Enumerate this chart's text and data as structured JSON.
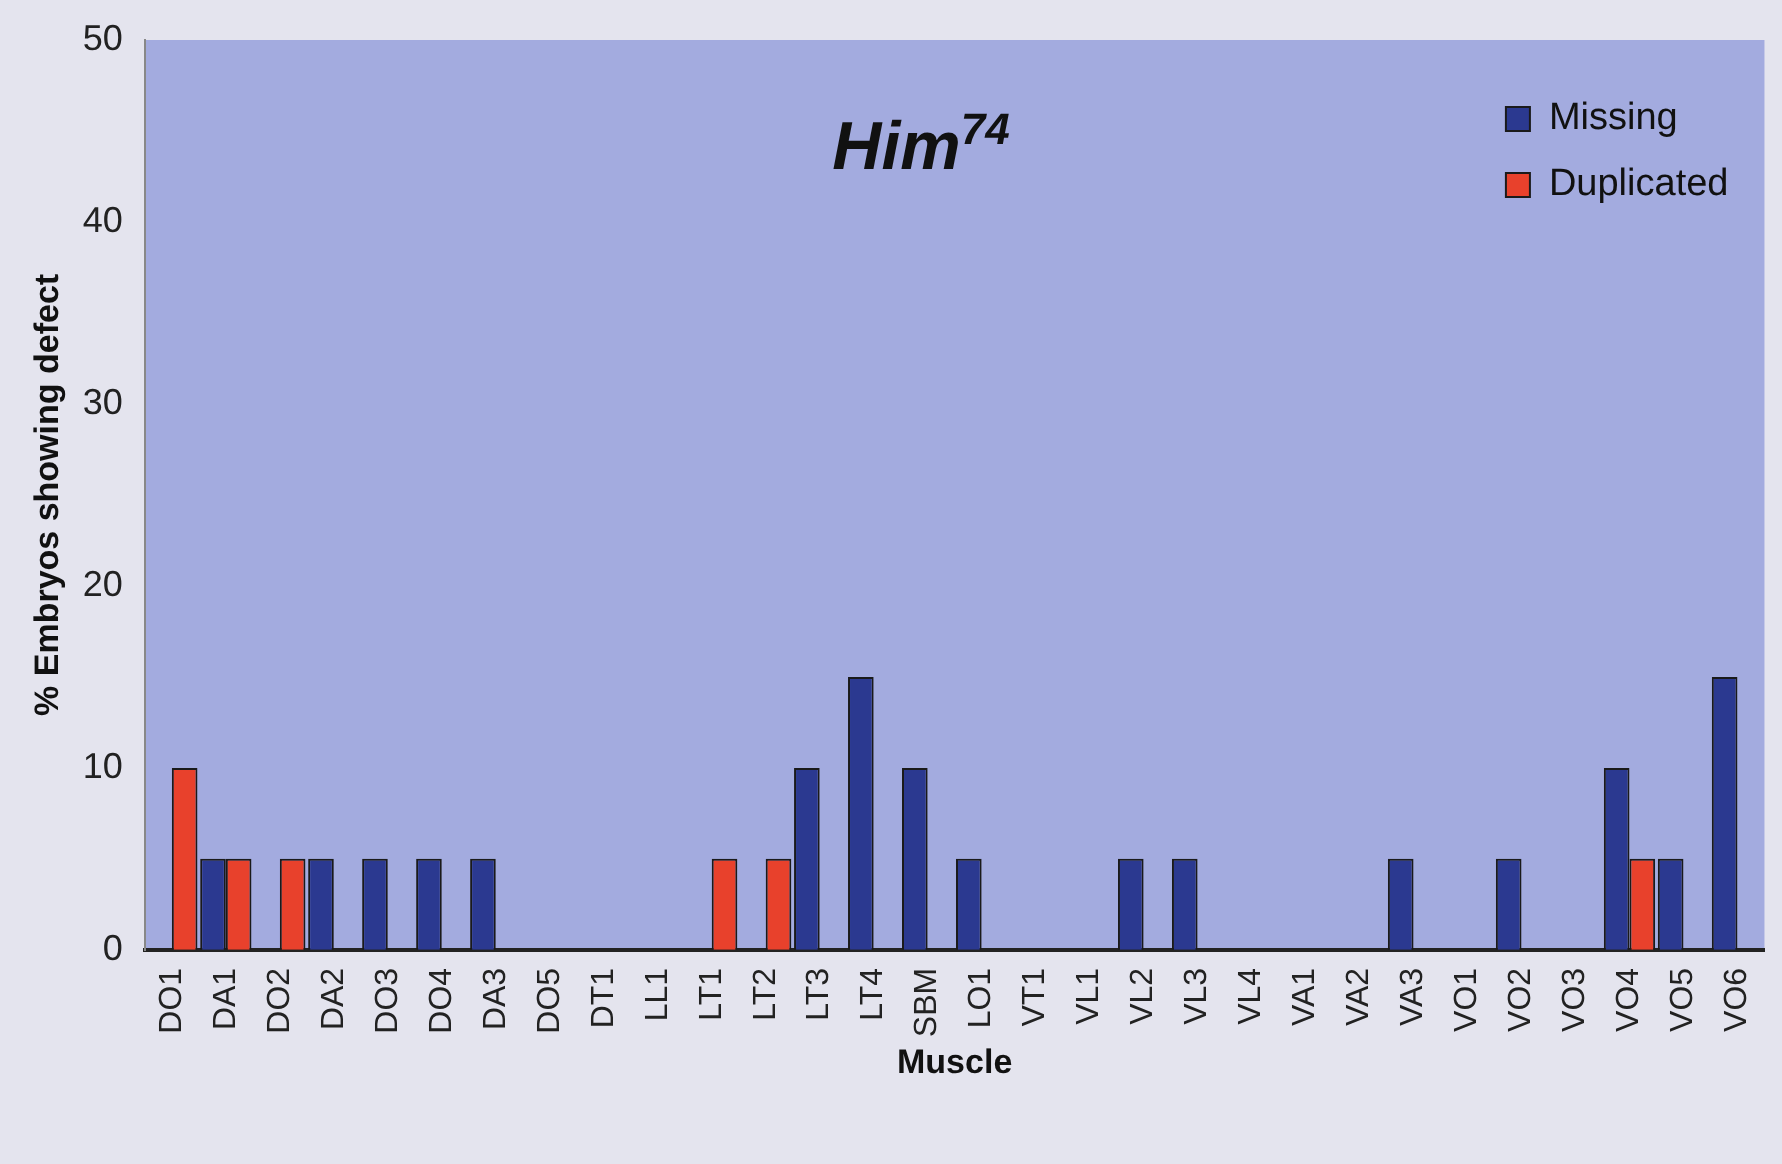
{
  "chart_data": {
    "type": "bar",
    "title": "Him$^{74}$",
    "xlabel": "Muscle",
    "ylabel": "% Embryos showing defect",
    "categories": [
      "DO1",
      "DA1",
      "DO2",
      "DA2",
      "DO3",
      "DO4",
      "DA3",
      "DO5",
      "DT1",
      "LL1",
      "LT1",
      "LT2",
      "LT3",
      "LT4",
      "SBM",
      "LO1",
      "VT1",
      "VL1",
      "VL2",
      "VL3",
      "VL4",
      "VA1",
      "VA2",
      "VA3",
      "VO1",
      "VO2",
      "VO3",
      "VO4",
      "VO5",
      "VO6"
    ],
    "series": [
      {
        "name": "Missing",
        "color": "#2b3990",
        "values": [
          0,
          5,
          0,
          5,
          5,
          5,
          5,
          0,
          0,
          0,
          0,
          0,
          10,
          15,
          10,
          5,
          0,
          0,
          5,
          5,
          0,
          0,
          0,
          5,
          0,
          5,
          0,
          10,
          5,
          15
        ]
      },
      {
        "name": "Duplicated",
        "color": "#e8412c",
        "values": [
          10,
          5,
          5,
          0,
          0,
          0,
          0,
          0,
          0,
          0,
          5,
          5,
          0,
          0,
          0,
          0,
          0,
          0,
          0,
          0,
          0,
          0,
          0,
          0,
          0,
          0,
          0,
          5,
          0,
          0
        ]
      }
    ],
    "ylim": [
      0,
      50
    ],
    "yticks": [
      0,
      10,
      20,
      30,
      40,
      50
    ],
    "grid": false,
    "legend": "top right"
  }
}
